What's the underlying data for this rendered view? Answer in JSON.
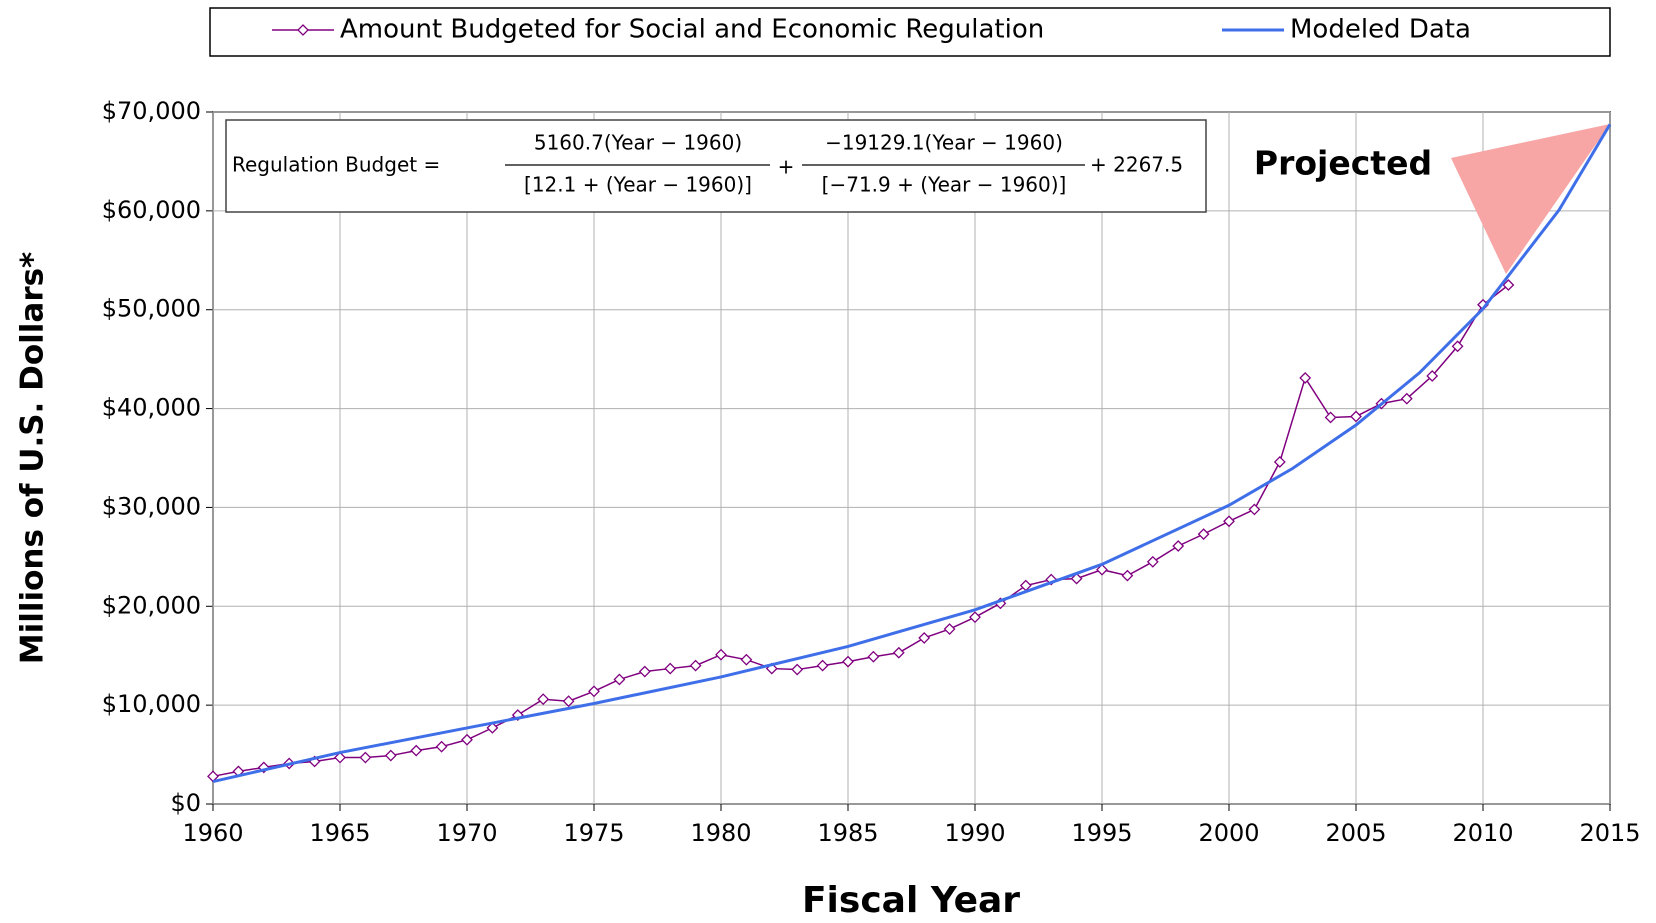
{
  "chart_data": {
    "type": "line",
    "xlabel": "Fiscal Year",
    "ylabel": "Millions of U.S. Dollars*",
    "annotation": "Projected",
    "equation": {
      "lhs": "Regulation Budget =",
      "num1": "5160.7(Year − 1960)",
      "den1": "[12.1 + (Year − 1960)]",
      "num2": "−19129.1(Year − 1960)",
      "den2": "[−71.9 + (Year − 1960)]",
      "plus": "+",
      "tail": "+ 2267.5"
    },
    "xlim": [
      1960,
      2015
    ],
    "xticks": [
      1960,
      1965,
      1970,
      1975,
      1980,
      1985,
      1990,
      1995,
      2000,
      2005,
      2010,
      2015
    ],
    "ylim": [
      0,
      70000
    ],
    "yticks": [
      {
        "value": 0,
        "label": "$0"
      },
      {
        "value": 10000,
        "label": "$10,000"
      },
      {
        "value": 20000,
        "label": "$20,000"
      },
      {
        "value": 30000,
        "label": "$30,000"
      },
      {
        "value": 40000,
        "label": "$40,000"
      },
      {
        "value": 50000,
        "label": "$50,000"
      },
      {
        "value": 60000,
        "label": "$60,000"
      },
      {
        "value": 70000,
        "label": "$70,000"
      }
    ],
    "grid": true,
    "legend": "top",
    "series": [
      {
        "name": "Amount Budgeted for Social and Economic Regulation",
        "color": "#800080",
        "marker": "diamond",
        "x": [
          1960,
          1961,
          1962,
          1963,
          1964,
          1965,
          1966,
          1967,
          1968,
          1969,
          1970,
          1971,
          1972,
          1973,
          1974,
          1975,
          1976,
          1977,
          1978,
          1979,
          1980,
          1981,
          1982,
          1983,
          1984,
          1985,
          1986,
          1987,
          1988,
          1989,
          1990,
          1991,
          1992,
          1993,
          1994,
          1995,
          1996,
          1997,
          1998,
          1999,
          2000,
          2001,
          2002,
          2003,
          2004,
          2005,
          2006,
          2007,
          2008,
          2009,
          2010,
          2011
        ],
        "values": [
          2800,
          3300,
          3700,
          4100,
          4300,
          4700,
          4700,
          4900,
          5400,
          5800,
          6500,
          7700,
          9000,
          10600,
          10400,
          11400,
          12600,
          13400,
          13700,
          14000,
          15100,
          14600,
          13700,
          13600,
          14000,
          14400,
          14900,
          15300,
          16800,
          17700,
          18900,
          20300,
          22100,
          22700,
          22800,
          23700,
          23100,
          24500,
          26100,
          27300,
          28600,
          29800,
          34600,
          43100,
          39100,
          39200,
          40500,
          41000,
          43300,
          46300,
          50500,
          52500
        ]
      },
      {
        "name": "Modeled Data",
        "color": "#3f6fe8",
        "x": [
          1960,
          1965,
          1970,
          1975,
          1980,
          1985,
          1990,
          1995,
          2000,
          2002.5,
          2005,
          2007.5,
          2010,
          2013,
          2015
        ],
        "values": [
          2267.5,
          5206.2,
          7693.0,
          10166.8,
          12854.4,
          15941.7,
          19641.3,
          24246.5,
          30215.9,
          33937.1,
          38335.0,
          43619.5,
          50096.4,
          60111,
          68752
        ]
      }
    ]
  }
}
